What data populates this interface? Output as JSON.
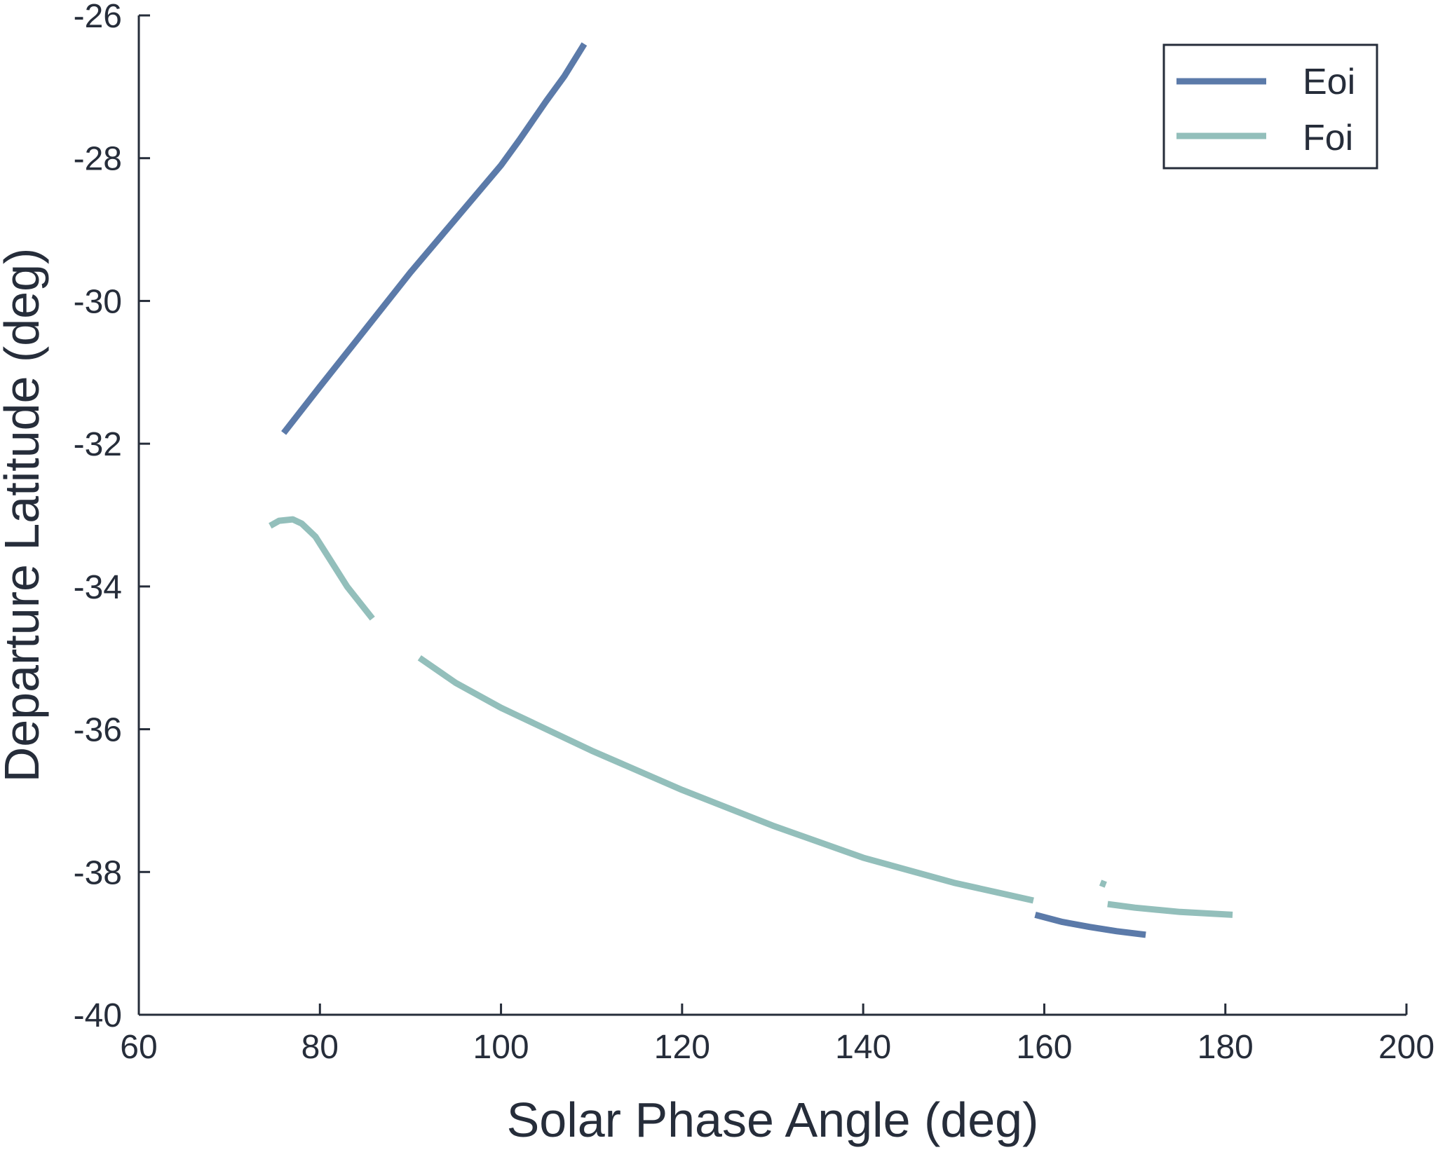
{
  "chart_data": {
    "type": "line",
    "xlabel": "Solar Phase Angle (deg)",
    "ylabel": "Departure Latitude (deg)",
    "xlim": [
      60,
      200
    ],
    "ylim": [
      -40,
      -26
    ],
    "xticks": [
      60,
      80,
      100,
      120,
      140,
      160,
      180,
      200
    ],
    "yticks": [
      -26,
      -28,
      -30,
      -32,
      -34,
      -36,
      -38,
      -40
    ],
    "grid": false,
    "legend_position": "top-right",
    "series": [
      {
        "name": "Eoi",
        "color": "#5b7aa9",
        "segments": [
          [
            [
              76,
              -31.85
            ],
            [
              80,
              -31.2
            ],
            [
              85,
              -30.4
            ],
            [
              90,
              -29.6
            ],
            [
              95,
              -28.85
            ],
            [
              100,
              -28.1
            ],
            [
              102,
              -27.75
            ],
            [
              105,
              -27.2
            ],
            [
              107,
              -26.85
            ],
            [
              109.2,
              -26.4
            ]
          ],
          [
            [
              159,
              -38.6
            ],
            [
              162,
              -38.7
            ],
            [
              165,
              -38.77
            ],
            [
              168,
              -38.83
            ],
            [
              171.2,
              -38.88
            ]
          ]
        ]
      },
      {
        "name": "Foi",
        "color": "#93bfbb",
        "segments": [
          [
            [
              74.5,
              -33.15
            ],
            [
              75.5,
              -33.08
            ],
            [
              77,
              -33.06
            ],
            [
              78,
              -33.12
            ],
            [
              79.5,
              -33.3
            ],
            [
              81,
              -33.6
            ],
            [
              83,
              -34.0
            ],
            [
              85.8,
              -34.45
            ]
          ],
          [
            [
              91,
              -35.0
            ],
            [
              95,
              -35.35
            ],
            [
              100,
              -35.7
            ],
            [
              110,
              -36.3
            ],
            [
              120,
              -36.85
            ],
            [
              130,
              -37.35
            ],
            [
              140,
              -37.8
            ],
            [
              150,
              -38.15
            ],
            [
              158.8,
              -38.4
            ]
          ],
          [
            [
              166.2,
              -38.15
            ],
            [
              166.8,
              -38.18
            ]
          ],
          [
            [
              167,
              -38.45
            ],
            [
              170,
              -38.5
            ],
            [
              175,
              -38.56
            ],
            [
              180.8,
              -38.6
            ]
          ]
        ]
      }
    ]
  }
}
